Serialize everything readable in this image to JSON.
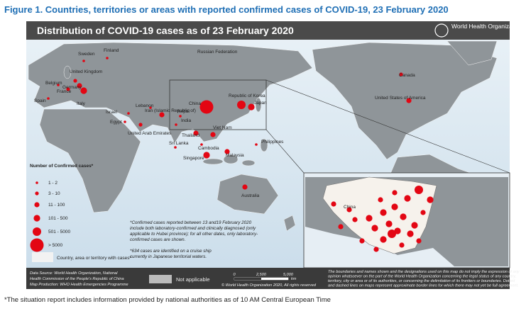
{
  "figure_title": "Figure 1. Countries, territories or areas with reported confirmed cases of COVID-19, 23 February 2020",
  "map": {
    "title": "Distribution of COVID-19 cases as of 23 February 2020",
    "organization": "World Health Organization",
    "labels": [
      "Sweden",
      "Finland",
      "United Kingdom",
      "Belgium",
      "Germany",
      "France",
      "Spain",
      "Italy",
      "Russian Federation",
      "Lebanon",
      "Israel",
      "Egypt",
      "Iran (Islamic Republic of)",
      "United Arab Emirates",
      "Nepal",
      "India",
      "China",
      "Republic of Korea",
      "Japan",
      "Viet Nam",
      "Thailand",
      "Cambodia",
      "Sri Lanka",
      "Philippines",
      "Malaysia",
      "Singapore",
      "Australia",
      "Canada",
      "United States of America"
    ],
    "inset_label": "China",
    "legend": {
      "title": "Number of Confirmed cases*",
      "classes": [
        "1 - 2",
        "3 - 10",
        "11 - 100",
        "101 - 500",
        "501 - 5000",
        "> 5000"
      ],
      "territory": "Country, area or territory with cases*",
      "not_applicable": "Not applicable"
    },
    "notes": [
      "*Confirmed cases reported between 13 and19 February 2020",
      "include both laboratory-confirmed and clinically diagnosed (only",
      "applicable to Hubei province); for all other dates, only laboratory-",
      "confirmed cases are shown.",
      "*634 cases are identified on a cruise ship",
      "currently in Japanese territorial waters."
    ],
    "footer": {
      "data_source": [
        "Data Source: World Health Organization, National",
        "Health Commission of the People's Republic of China",
        "Map Production: WHO Health Emergencies Programme"
      ],
      "scale": [
        "0",
        "2,500",
        "5,000"
      ],
      "scale_unit": "km",
      "copyright": "© World Health Organization 2020, All rights reserved",
      "disclaimer": [
        "The boundaries and names shown and the designations used on this map do not imply the expression of any",
        "opinion whatsoever on the part of the World Health Organization concerning the legal status of any country,",
        "territory, city or area or of its authorities, or concerning the delimitation of its frontiers or boundaries. Dotted",
        "and dashed lines on maps represent approximate border lines for which there may not yet be full agreement."
      ]
    }
  },
  "footnote": "*The situation report includes information provided by national authorities as of 10 AM Central European Time"
}
